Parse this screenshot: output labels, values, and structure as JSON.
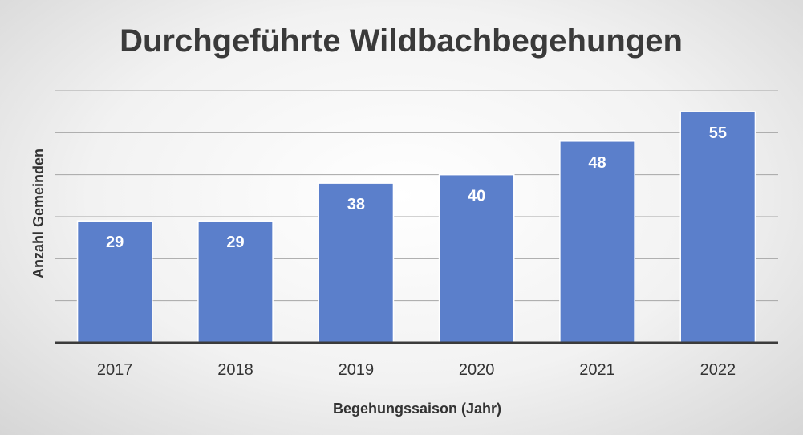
{
  "chart_data": {
    "type": "bar",
    "title": "Durchgeführte Wildbachbegehungen",
    "xlabel": "Begehungssaison (Jahr)",
    "ylabel": "Anzahl Gemeinden",
    "categories": [
      "2017",
      "2018",
      "2019",
      "2020",
      "2021",
      "2022"
    ],
    "series": [
      {
        "values": [
          29,
          29,
          38,
          40,
          48,
          55
        ]
      }
    ],
    "ylim": [
      0,
      60
    ],
    "y_gridline_step": 10,
    "y_tick_labels_shown": false,
    "grid": true,
    "data_labels": true,
    "legend": "none",
    "colors": {
      "bar": "#5b7fcb",
      "bar_edge": "#ffffff",
      "gridline": "#a6a6a6",
      "baseline": "#3b3b3b",
      "title": "#3a3a3a",
      "text": "#333333",
      "data_label": "#ffffff"
    }
  }
}
